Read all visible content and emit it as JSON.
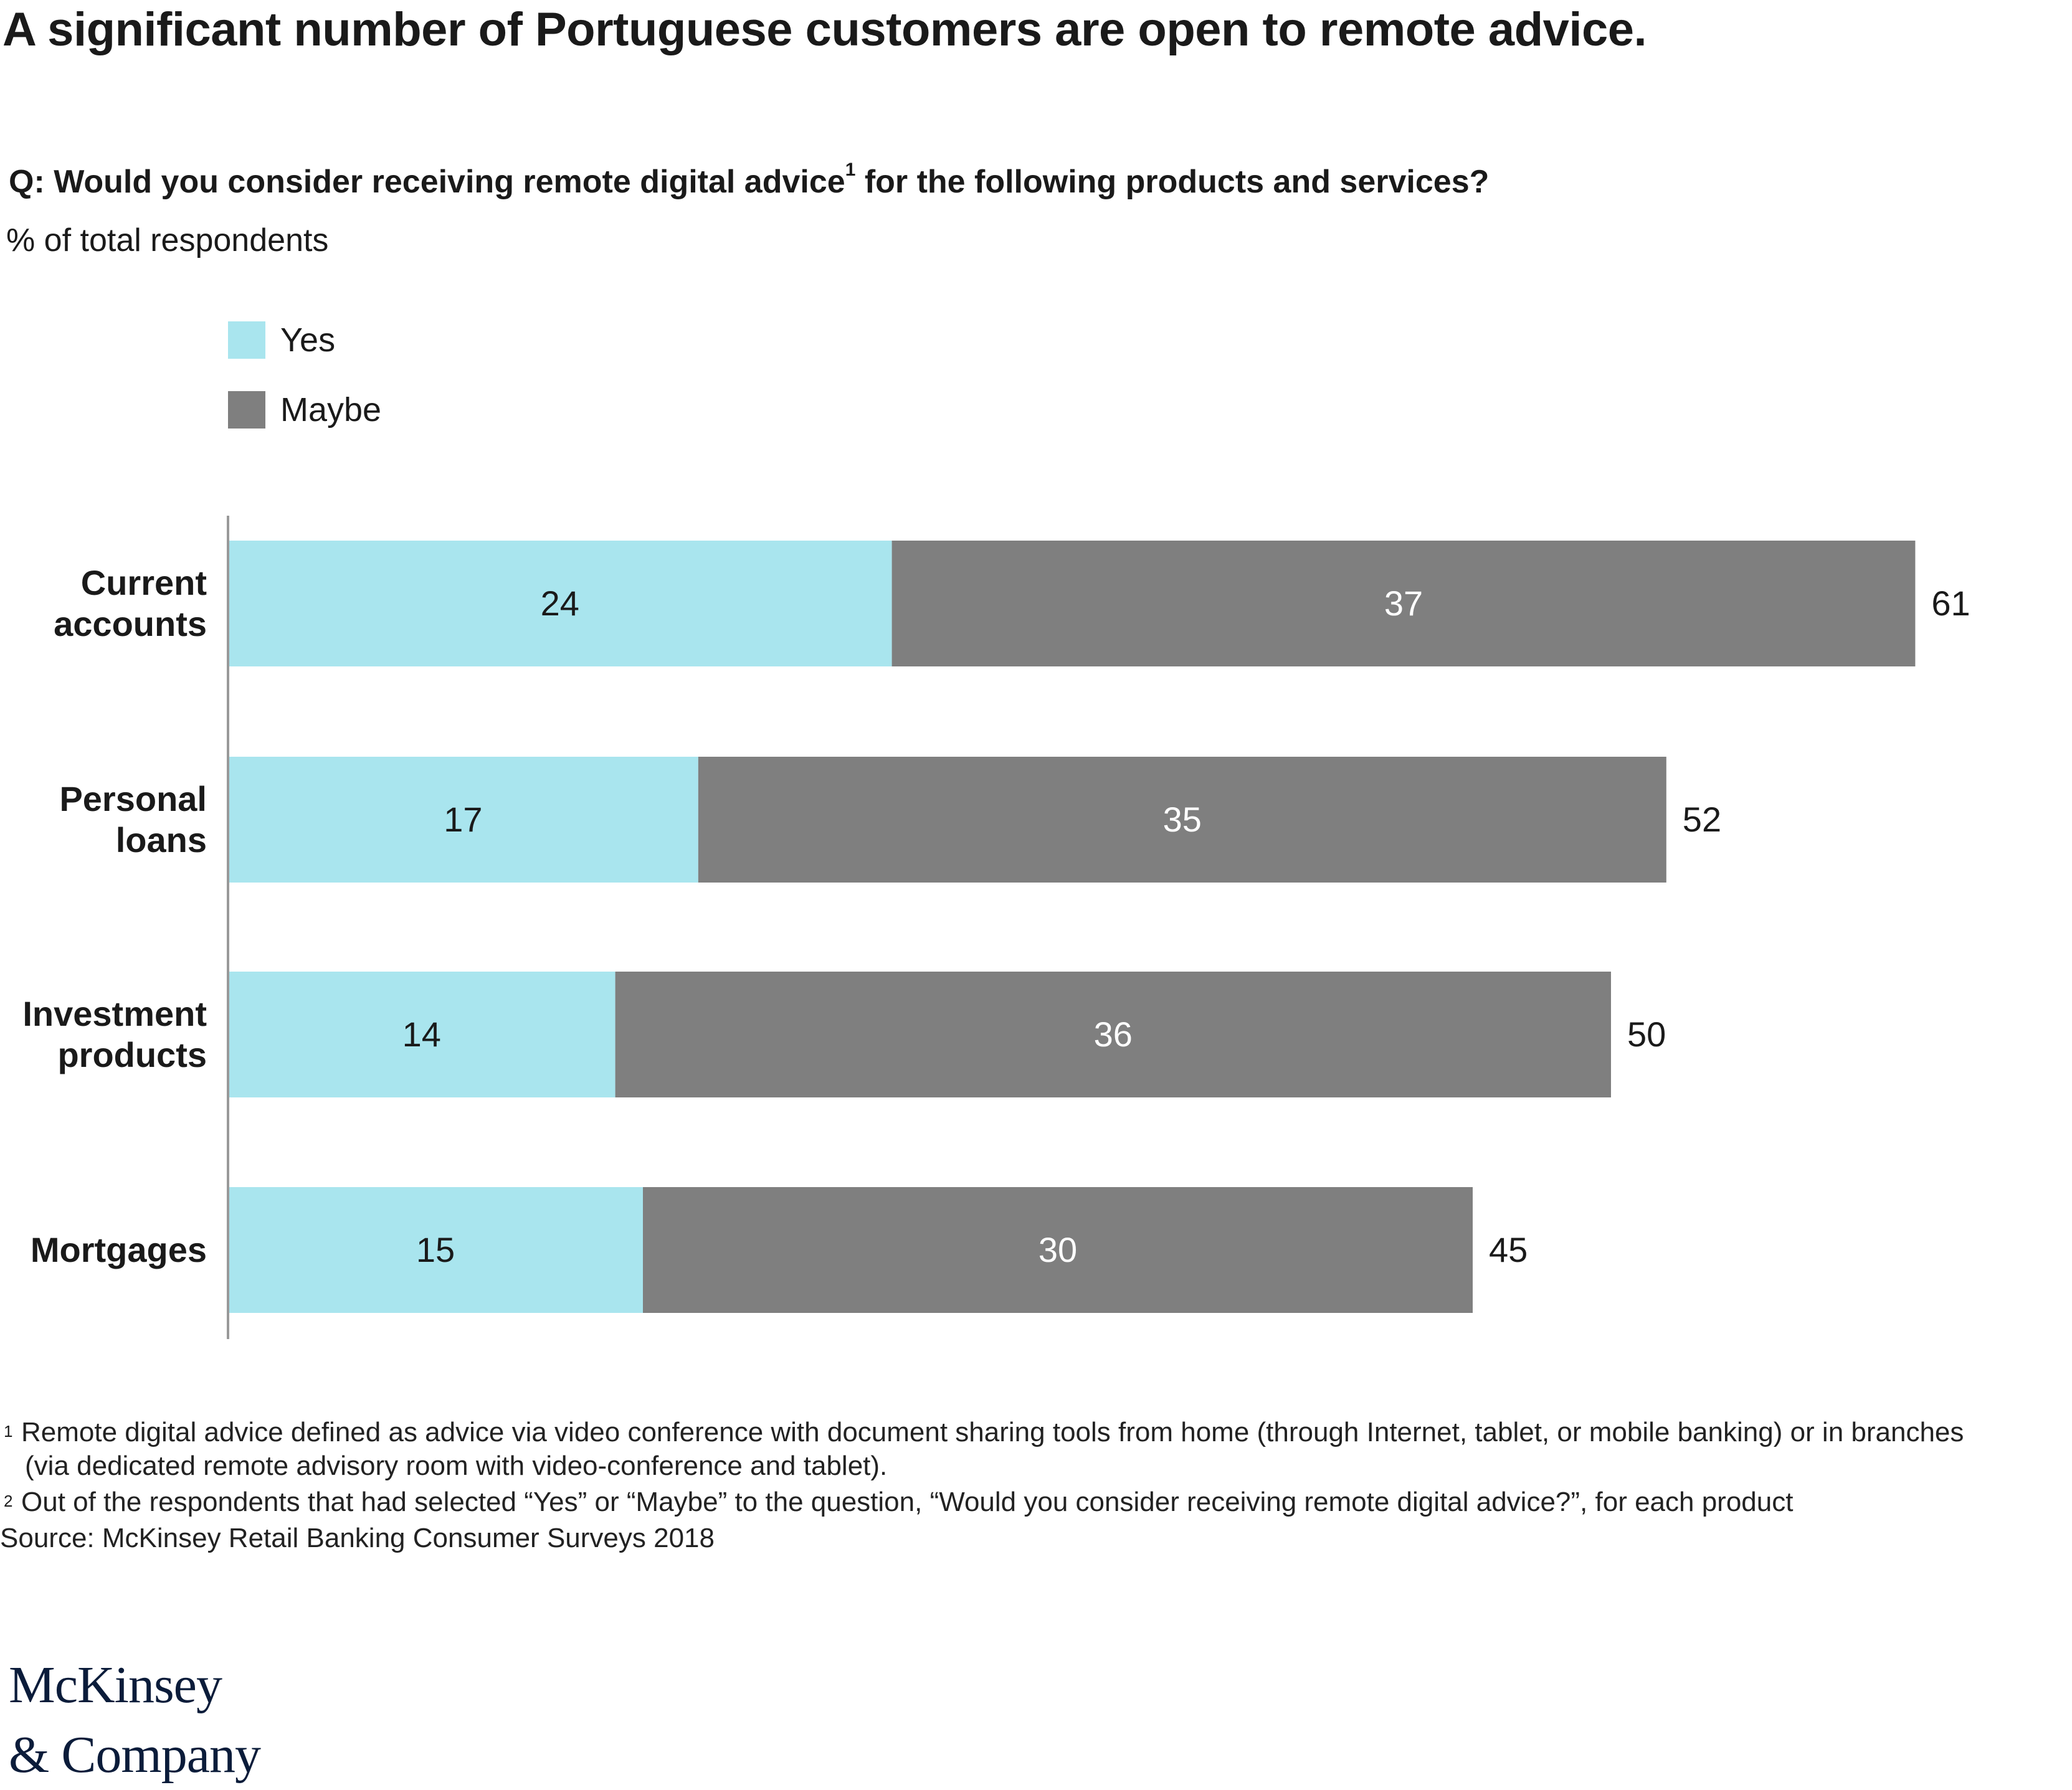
{
  "title": "A significant number of Portuguese customers are open to remote advice.",
  "question": {
    "text_before": "Q: Would you consider receiving remote digital advice",
    "footnote_ref": "1",
    "text_after": " for the following products and services?"
  },
  "subtitle": "% of total respondents",
  "colors": {
    "yes": "#a9e5ee",
    "maybe": "#7f7f7f",
    "axis": "#999999"
  },
  "chart_data": {
    "type": "bar",
    "orientation": "horizontal",
    "stacked": true,
    "categories": [
      [
        "Current",
        "accounts"
      ],
      [
        "Personal",
        "loans"
      ],
      [
        "Investment",
        "products"
      ],
      [
        "Mortgages"
      ]
    ],
    "series": [
      {
        "name": "Yes",
        "values": [
          24,
          17,
          14,
          15
        ]
      },
      {
        "name": "Maybe",
        "values": [
          37,
          35,
          36,
          30
        ]
      }
    ],
    "totals": [
      61,
      52,
      50,
      45
    ],
    "legend_position": "top-left",
    "grid": false
  },
  "footnotes": {
    "fn1_marker": "1",
    "fn1_line1": "Remote digital advice defined as advice via video conference with document sharing tools from home (through Internet, tablet, or mobile banking) or in branches",
    "fn1_line2": "(via dedicated remote advisory room with video-conference and tablet).",
    "fn2_marker": "2",
    "fn2_line1": "Out of the respondents that had selected “Yes” or “Maybe” to the question, “Would you consider receiving remote digital advice?”, for each product",
    "source": "Source: McKinsey Retail Banking Consumer Surveys 2018"
  },
  "logo": {
    "line1": "McKinsey",
    "line2": "& Company"
  }
}
